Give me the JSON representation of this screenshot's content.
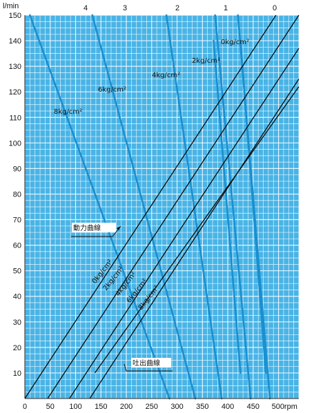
{
  "chart_data": {
    "type": "line",
    "ylabel": "l/min",
    "xlabel": "",
    "x_tick_labels": [
      "0",
      "50",
      "100",
      "150",
      "200",
      "250",
      "300",
      "350",
      "400",
      "450",
      "500rpm"
    ],
    "y_tick_labels": [
      "10",
      "20",
      "30",
      "40",
      "50",
      "60",
      "70",
      "80",
      "90",
      "100",
      "110",
      "120",
      "130",
      "140",
      "150"
    ],
    "top_tick_labels": [
      "4",
      "3",
      "2",
      "1",
      "0"
    ],
    "xlim": [
      0,
      540
    ],
    "ylim": [
      0,
      150
    ],
    "grid": true,
    "colors": {
      "background": "#49b4e6",
      "grid": "#f4fbff",
      "power": "#1a8fd0",
      "discharge": "#0a0a0a"
    },
    "annotations": {
      "power_curves": "動力曲線",
      "discharge_curves": "吐出曲線"
    },
    "power_curve_series": [
      {
        "name": "0kg/cm²",
        "x": [
          475,
          425
        ],
        "y": [
          10,
          140
        ]
      },
      {
        "name": "2kg/cm²",
        "x": [
          425,
          372
        ],
        "y": [
          10,
          140
        ]
      },
      {
        "name": "4kg/cm²",
        "x": [
          388,
          279
        ],
        "y": [
          0,
          150
        ]
      },
      {
        "name": "6kg/cm²",
        "x": [
          336,
          133
        ],
        "y": [
          0,
          150
        ]
      },
      {
        "name": "8kg/cm²",
        "x": [
          285,
          10
        ],
        "y": [
          0,
          150
        ]
      },
      {
        "name": "",
        "x": [
          483,
          420
        ],
        "y": [
          0,
          150
        ]
      },
      {
        "name": "",
        "x": [
          445,
          375
        ],
        "y": [
          0,
          150
        ]
      }
    ],
    "discharge_curve_series": [
      {
        "name": "0kg/cm²",
        "x": [
          0,
          495
        ],
        "y": [
          0,
          150
        ]
      },
      {
        "name": "2kg/cm²",
        "x": [
          45,
          540
        ],
        "y": [
          0,
          150
        ]
      },
      {
        "name": "4kg/cm²",
        "x": [
          88,
          540
        ],
        "y": [
          0,
          137
        ]
      },
      {
        "name": "6kg/cm²",
        "x": [
          128,
          540
        ],
        "y": [
          0,
          125
        ]
      },
      {
        "name": "8kg/cm²",
        "x": [
          138,
          540
        ],
        "y": [
          10,
          122
        ]
      }
    ]
  }
}
